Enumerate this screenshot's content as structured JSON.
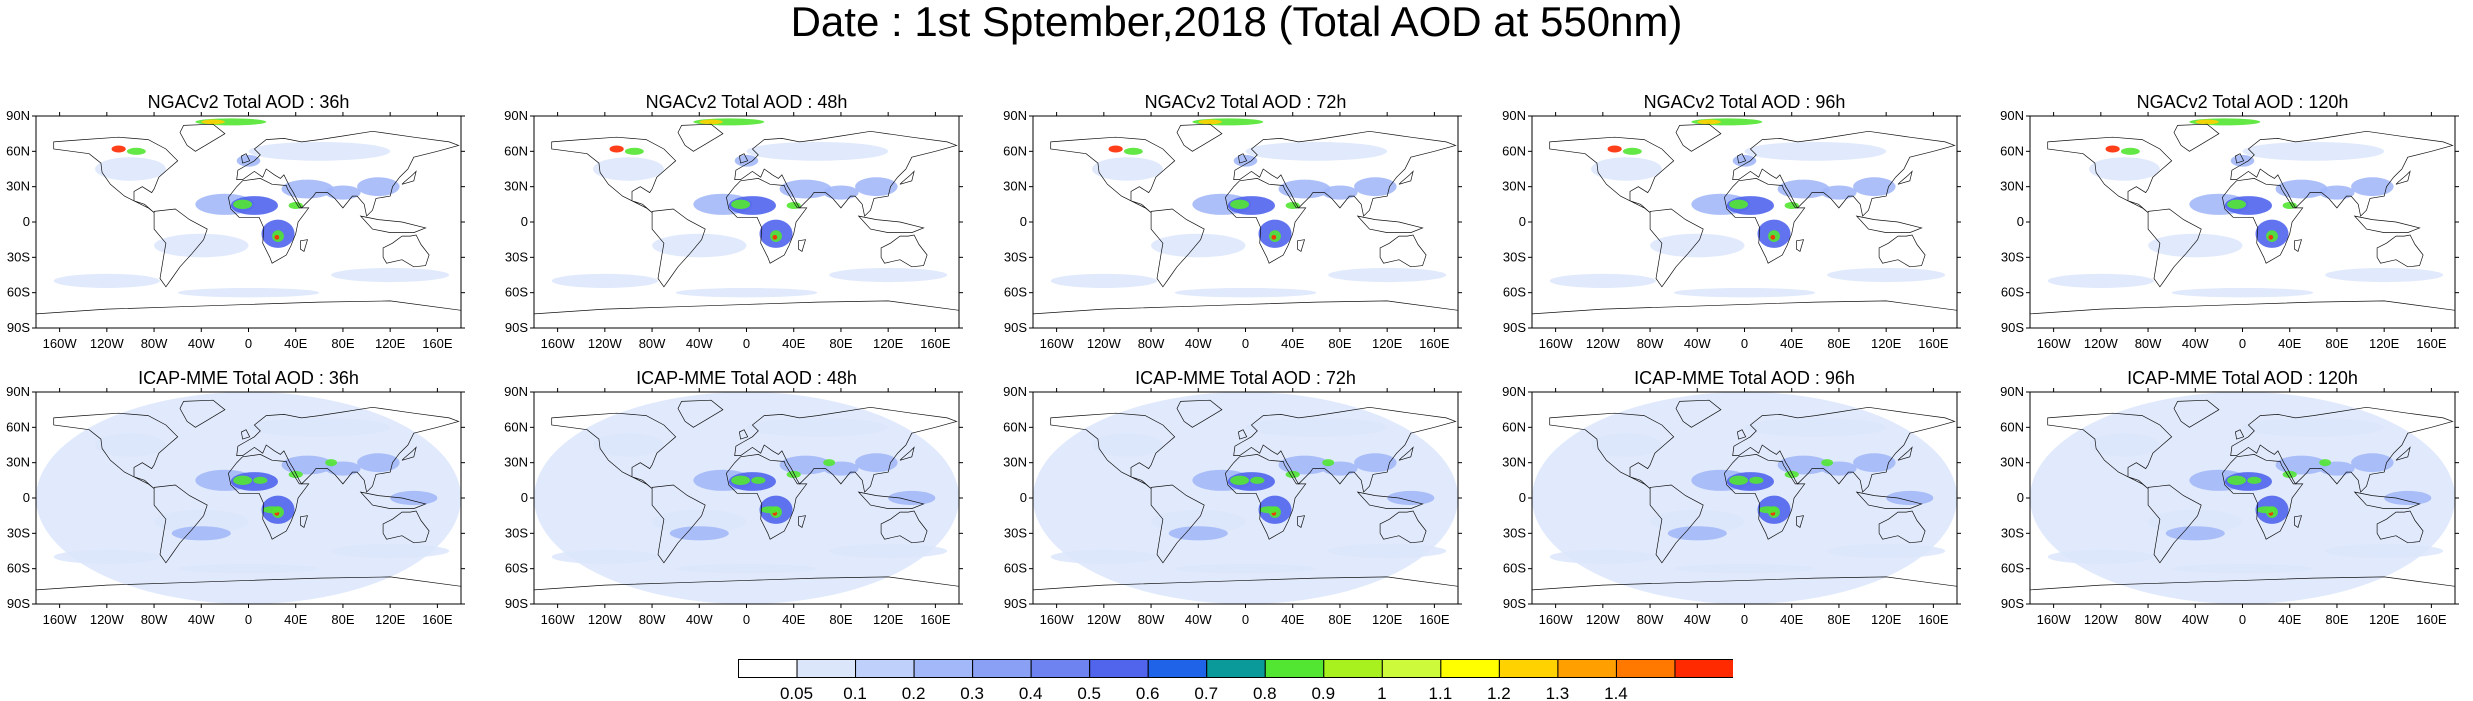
{
  "title": "Date : 1st Sptember,2018 (Total AOD at 550nm)",
  "lat_ticks": [
    "90N",
    "60N",
    "30N",
    "0",
    "30S",
    "60S",
    "90S"
  ],
  "lon_ticks": [
    "160W",
    "120W",
    "80W",
    "40W",
    "0",
    "40E",
    "80E",
    "120E",
    "160E"
  ],
  "lat_values": [
    90,
    60,
    30,
    0,
    -30,
    -60,
    -90
  ],
  "lon_values": [
    -160,
    -120,
    -80,
    -40,
    0,
    40,
    80,
    120,
    160
  ],
  "panels": [
    {
      "title": "NGACv2 Total AOD : 36h",
      "model": "NGACv2",
      "lead_hours": 36
    },
    {
      "title": "NGACv2 Total AOD : 48h",
      "model": "NGACv2",
      "lead_hours": 48
    },
    {
      "title": "NGACv2 Total AOD : 72h",
      "model": "NGACv2",
      "lead_hours": 72
    },
    {
      "title": "NGACv2 Total AOD : 96h",
      "model": "NGACv2",
      "lead_hours": 96
    },
    {
      "title": "NGACv2 Total AOD : 120h",
      "model": "NGACv2",
      "lead_hours": 120
    },
    {
      "title": "ICAP-MME Total AOD : 36h",
      "model": "ICAP-MME",
      "lead_hours": 36
    },
    {
      "title": "ICAP-MME Total AOD : 48h",
      "model": "ICAP-MME",
      "lead_hours": 48
    },
    {
      "title": "ICAP-MME Total AOD : 72h",
      "model": "ICAP-MME",
      "lead_hours": 72
    },
    {
      "title": "ICAP-MME Total AOD : 96h",
      "model": "ICAP-MME",
      "lead_hours": 96
    },
    {
      "title": "ICAP-MME Total AOD : 120h",
      "model": "ICAP-MME",
      "lead_hours": 120
    }
  ],
  "colorbar": {
    "labels": [
      "0.05",
      "0.1",
      "0.2",
      "0.3",
      "0.4",
      "0.5",
      "0.6",
      "0.7",
      "0.8",
      "0.9",
      "1",
      "1.1",
      "1.2",
      "1.3",
      "1.4"
    ],
    "colors": [
      "#ffffff",
      "#dce6fb",
      "#bfd0fa",
      "#a3b8f8",
      "#8aa0f5",
      "#6e82f0",
      "#5064ec",
      "#1f64e8",
      "#0a9a9a",
      "#52e632",
      "#a8f01e",
      "#cdfb3c",
      "#ffff00",
      "#ffd200",
      "#ffa000",
      "#ff7800",
      "#ff2a00"
    ]
  },
  "map_colors": {
    "background": "#ffffff",
    "coast": "#111111",
    "aod_low": "#dce6fb",
    "aod_mid": "#a3b8f8",
    "aod_high": "#5064ec",
    "aod_dust": "#52e632",
    "aod_smoke": "#ffd200",
    "aod_peak": "#ff2a00"
  }
}
